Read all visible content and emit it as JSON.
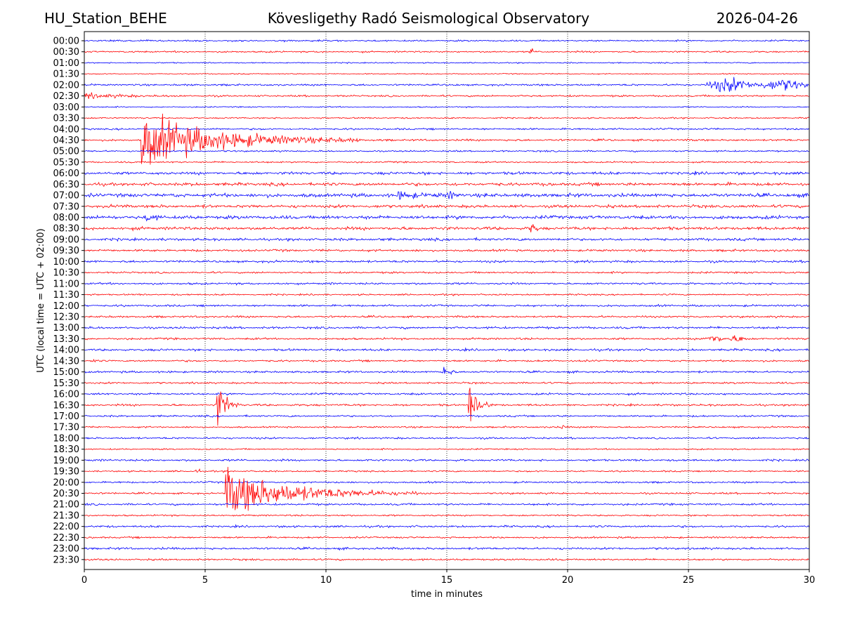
{
  "header": {
    "station": "HU_Station_BEHE",
    "title": "Kövesligethy Radó Seismological Observatory",
    "date": "2026-04-26"
  },
  "chart_data": {
    "type": "line",
    "subtype": "helicorder",
    "title": "Kövesligethy Radó Seismological Observatory",
    "xlabel": "time in minutes",
    "ylabel": "UTC (local time = UTC + 02:00)",
    "xlim": [
      0,
      30
    ],
    "x_ticks": [
      0,
      5,
      10,
      15,
      20,
      25,
      30
    ],
    "gridlines_x": [
      5,
      10,
      15,
      20,
      25
    ],
    "colors": [
      "#0000ff",
      "#ff0000"
    ],
    "rows": [
      "00:00",
      "00:30",
      "01:00",
      "01:30",
      "02:00",
      "02:30",
      "03:00",
      "03:30",
      "04:00",
      "04:30",
      "05:00",
      "05:30",
      "06:00",
      "06:30",
      "07:00",
      "07:30",
      "08:00",
      "08:30",
      "09:00",
      "09:30",
      "10:00",
      "10:30",
      "11:00",
      "11:30",
      "12:00",
      "12:30",
      "13:00",
      "13:30",
      "14:00",
      "14:30",
      "15:00",
      "15:30",
      "16:00",
      "16:30",
      "17:00",
      "17:30",
      "18:00",
      "18:30",
      "19:00",
      "19:30",
      "20:00",
      "20:30",
      "21:00",
      "21:30",
      "22:00",
      "22:30",
      "23:00",
      "23:30"
    ],
    "noise_level": [
      0.8,
      0.8,
      0.6,
      0.5,
      0.9,
      0.9,
      0.6,
      0.7,
      0.9,
      1.0,
      0.8,
      0.8,
      1.4,
      1.5,
      1.8,
      1.5,
      1.7,
      1.5,
      1.3,
      1.1,
      1.1,
      0.9,
      1.0,
      0.8,
      1.0,
      1.0,
      1.1,
      1.0,
      1.1,
      0.9,
      1.0,
      0.9,
      1.0,
      1.0,
      0.9,
      0.8,
      0.9,
      0.7,
      1.0,
      0.8,
      0.9,
      0.9,
      1.0,
      0.8,
      1.0,
      0.9,
      1.1,
      0.9
    ],
    "events": [
      {
        "row": "00:30",
        "minute": 18.5,
        "amplitude": 5,
        "duration": 0.1
      },
      {
        "row": "02:00",
        "minute": 25.5,
        "amplitude": 12,
        "duration": 4.5,
        "shape": "burst"
      },
      {
        "row": "02:30",
        "minute": 0.0,
        "amplitude": 3,
        "duration": 4.0
      },
      {
        "row": "04:30",
        "minute": 2.4,
        "amplitude": 32,
        "duration": 9.0
      },
      {
        "row": "07:00",
        "minute": 13.0,
        "amplitude": 4,
        "duration": 2.5
      },
      {
        "row": "07:00",
        "minute": 15.1,
        "amplitude": 6,
        "duration": 0.6
      },
      {
        "row": "08:00",
        "minute": 2.6,
        "amplitude": 5,
        "duration": 0.8
      },
      {
        "row": "08:30",
        "minute": 18.5,
        "amplitude": 13,
        "duration": 0.3
      },
      {
        "row": "13:30",
        "minute": 25.5,
        "amplitude": 6,
        "duration": 2.0,
        "shape": "burst"
      },
      {
        "row": "14:30",
        "minute": 0.3,
        "amplitude": 5,
        "duration": 0.2
      },
      {
        "row": "15:00",
        "minute": 14.9,
        "amplitude": 9,
        "duration": 0.6
      },
      {
        "row": "16:30",
        "minute": 5.5,
        "amplitude": 30,
        "duration": 1.0
      },
      {
        "row": "16:30",
        "minute": 15.9,
        "amplitude": 28,
        "duration": 1.0
      },
      {
        "row": "17:30",
        "minute": 19.7,
        "amplitude": 4,
        "duration": 0.5
      },
      {
        "row": "19:30",
        "minute": 4.7,
        "amplitude": 4,
        "duration": 0.1
      },
      {
        "row": "20:30",
        "minute": 5.85,
        "amplitude": 28,
        "duration": 8.0
      }
    ]
  }
}
